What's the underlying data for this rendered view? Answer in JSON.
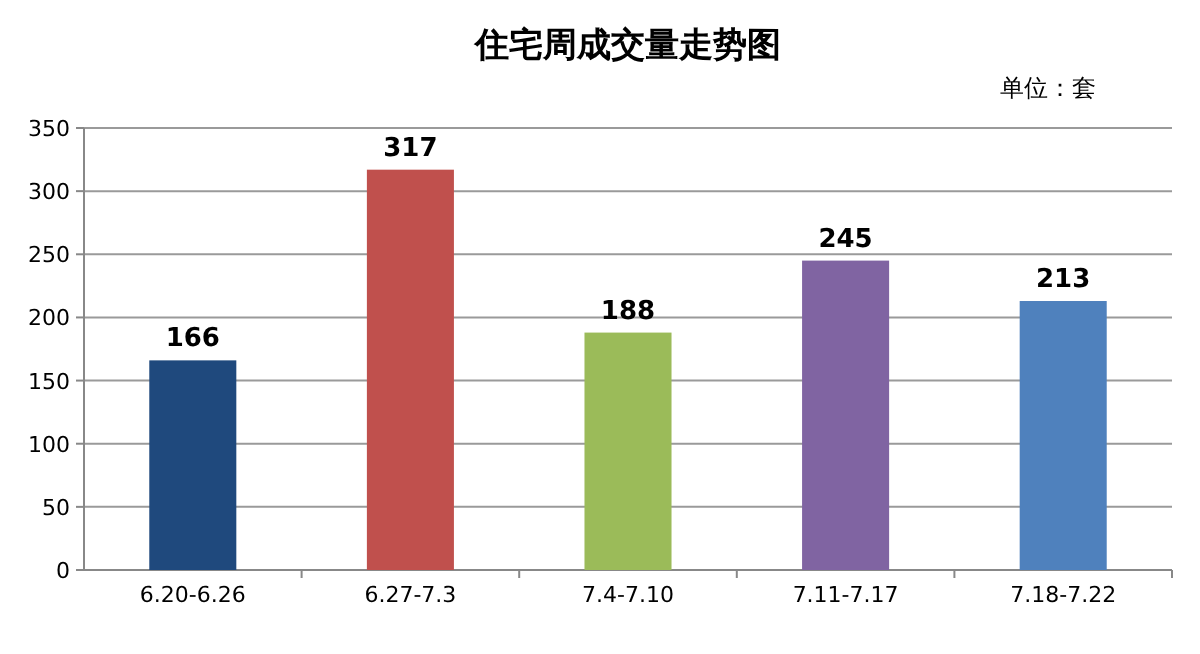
{
  "chart_data": {
    "type": "bar",
    "title": "住宅周成交量走势图",
    "annotations": [
      "单位：套"
    ],
    "categories": [
      "6.20-6.26",
      "6.27-7.3",
      "7.4-7.10",
      "7.11-7.17",
      "7.18-7.22"
    ],
    "values": [
      166,
      317,
      188,
      245,
      213
    ],
    "colors": [
      "#1f497d",
      "#c0504d",
      "#9bbb59",
      "#8064a2",
      "#4f81bd"
    ],
    "ylim": [
      0,
      350
    ],
    "yticks": [
      0,
      50,
      100,
      150,
      200,
      250,
      300,
      350
    ],
    "grid": "y",
    "data_labels": true
  }
}
